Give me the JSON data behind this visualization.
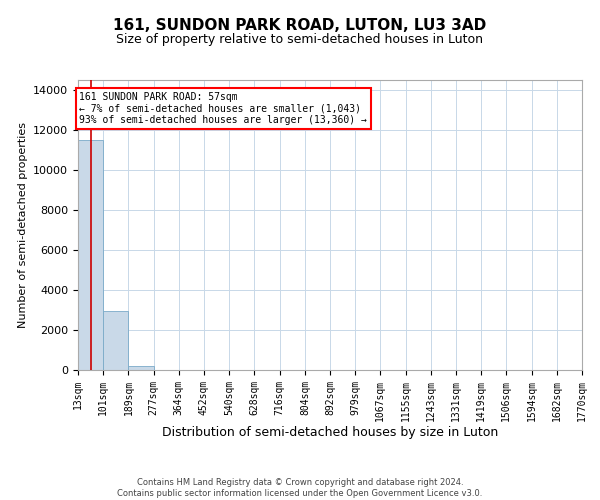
{
  "title1": "161, SUNDON PARK ROAD, LUTON, LU3 3AD",
  "title2": "Size of property relative to semi-detached houses in Luton",
  "xlabel": "Distribution of semi-detached houses by size in Luton",
  "ylabel": "Number of semi-detached properties",
  "bin_edges": [
    13,
    101,
    189,
    277,
    364,
    452,
    540,
    628,
    716,
    804,
    892,
    979,
    1067,
    1155,
    1243,
    1331,
    1419,
    1506,
    1594,
    1682,
    1770
  ],
  "bin_labels": [
    "13sqm",
    "101sqm",
    "189sqm",
    "277sqm",
    "364sqm",
    "452sqm",
    "540sqm",
    "628sqm",
    "716sqm",
    "804sqm",
    "892sqm",
    "979sqm",
    "1067sqm",
    "1155sqm",
    "1243sqm",
    "1331sqm",
    "1419sqm",
    "1506sqm",
    "1594sqm",
    "1682sqm",
    "1770sqm"
  ],
  "bar_heights": [
    11500,
    2950,
    200,
    10,
    2,
    1,
    0,
    0,
    0,
    0,
    0,
    0,
    0,
    0,
    0,
    0,
    0,
    0,
    0,
    0
  ],
  "bar_color": "#c9d9e8",
  "bar_edgecolor": "#7aaac8",
  "property_sqm": 57,
  "property_line_color": "#cc0000",
  "annotation_text": "161 SUNDON PARK ROAD: 57sqm\n← 7% of semi-detached houses are smaller (1,043)\n93% of semi-detached houses are larger (13,360) →",
  "ylim": [
    0,
    14500
  ],
  "yticks": [
    0,
    2000,
    4000,
    6000,
    8000,
    10000,
    12000,
    14000
  ],
  "footer_line1": "Contains HM Land Registry data © Crown copyright and database right 2024.",
  "footer_line2": "Contains public sector information licensed under the Open Government Licence v3.0.",
  "bg_color": "#ffffff",
  "grid_color": "#c8d8e8",
  "title1_fontsize": 11,
  "title2_fontsize": 9,
  "ann_fontsize": 7,
  "ylabel_fontsize": 8,
  "xlabel_fontsize": 9,
  "tick_fontsize": 7
}
